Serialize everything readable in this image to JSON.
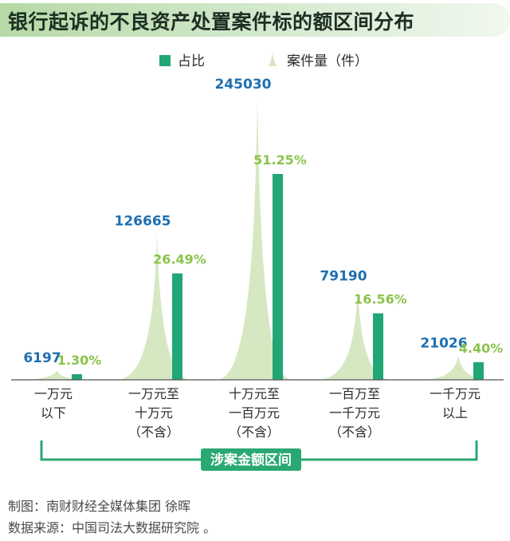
{
  "chart_data": {
    "type": "bar",
    "title": "银行起诉的不良资产处置案件标的额区间分布",
    "categories": [
      [
        "一万元",
        "以下"
      ],
      [
        "一万元至",
        "十万元",
        "（不含）"
      ],
      [
        "十万元至",
        "一百万元",
        "（不含）"
      ],
      [
        "一百万至",
        "一千万元",
        "（不含）"
      ],
      [
        "一千万元",
        "以上"
      ]
    ],
    "series": [
      {
        "name": "案件量（件）",
        "values": [
          6197,
          126665,
          245030,
          79190,
          21026
        ],
        "labels": [
          "6197",
          "126665",
          "245030",
          "79190",
          "21026"
        ],
        "color": "#d6e8c2",
        "shape": "spike"
      },
      {
        "name": "占比",
        "values": [
          1.3,
          26.49,
          51.25,
          16.56,
          4.4
        ],
        "labels": [
          "1.30%",
          "26.49%",
          "51.25%",
          "16.56%",
          "4.40%"
        ],
        "color": "#21a675",
        "shape": "bar"
      }
    ],
    "legend_placement": "top",
    "axis_group_label": "涉案金额区间",
    "colors": {
      "count_label": "#1f6fb0",
      "percent_label": "#8bc34a",
      "bracket": "#2aa872"
    }
  },
  "credits": {
    "maker": "制图：南财财经全媒体集团 徐晖",
    "source": "数据来源：中国司法大数据研究院 。"
  }
}
